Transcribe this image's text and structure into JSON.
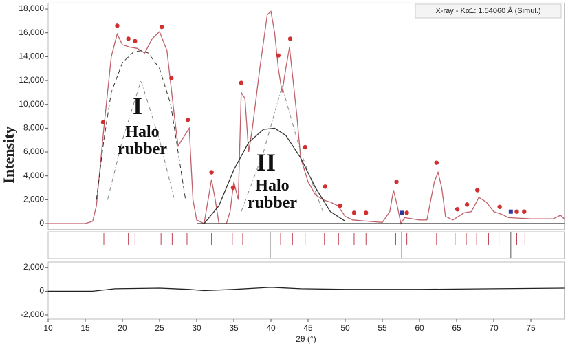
{
  "chart_data": [
    {
      "type": "line",
      "subtitle": "X-ray - Kα1: 1.54060 Å (Simul.)",
      "ylabel": "Intensity",
      "annotations": [
        "I",
        "Halo rubber",
        "II",
        "Halo rubber"
      ],
      "xlim": [
        10,
        79.5
      ],
      "ylim": [
        -500,
        18500
      ],
      "yticks": [
        0,
        {
          "value": 2000,
          "label": "2,000"
        },
        {
          "value": 4000,
          "label": "4,000"
        },
        {
          "value": 6000,
          "label": "6,000"
        },
        {
          "value": 8000,
          "label": "8,000"
        },
        {
          "value": 10000,
          "label": "10,000"
        },
        {
          "value": 12000,
          "label": "12,000"
        },
        {
          "value": 14000,
          "label": "14,000"
        },
        {
          "value": 16000,
          "label": "16,000"
        },
        {
          "value": 18000,
          "label": "18,000"
        }
      ],
      "series": [
        {
          "color": "#c0606a",
          "style": "solid",
          "x": [
            10,
            15,
            16,
            16.5,
            17.5,
            18.5,
            19.3,
            20,
            21,
            22,
            23,
            24,
            25,
            26,
            27,
            27.5,
            28.5,
            29,
            29.5,
            30,
            31,
            32,
            32.5,
            33,
            34,
            34.5,
            35,
            35.6,
            36,
            36.5,
            37,
            37.5,
            38.5,
            39.5,
            40,
            40.5,
            41,
            41.5,
            42,
            42.5,
            43.5,
            44,
            45,
            46,
            47,
            48,
            49,
            50,
            51,
            53,
            55,
            56,
            56.5,
            57,
            57.5,
            58,
            60,
            61,
            62,
            62.5,
            63,
            63.5,
            64.5,
            66,
            67,
            68,
            69,
            70,
            71,
            72,
            75,
            78,
            79,
            79.5
          ],
          "values": [
            0,
            0,
            200,
            1500,
            8000,
            14000,
            15900,
            15000,
            14800,
            14700,
            14300,
            15500,
            16100,
            14500,
            9000,
            6500,
            7500,
            8000,
            2000,
            300,
            0,
            3700,
            2000,
            0,
            0,
            1000,
            3500,
            2000,
            11000,
            10500,
            6000,
            8000,
            13000,
            17500,
            17800,
            16000,
            13000,
            11000,
            13000,
            14800,
            9000,
            5500,
            3500,
            2400,
            2000,
            1800,
            1500,
            600,
            300,
            200,
            100,
            1000,
            2800,
            1500,
            0,
            500,
            300,
            300,
            3500,
            4300,
            3000,
            600,
            300,
            900,
            1000,
            2200,
            1800,
            1000,
            800,
            500,
            400,
            400,
            700,
            400
          ]
        },
        {
          "color": "#333333",
          "style": "dashed",
          "x": [
            16.5,
            17.5,
            18.5,
            20,
            21.5,
            22.5,
            23.5,
            25,
            26.5,
            27.5,
            28.5
          ],
          "values": [
            2000,
            7000,
            11000,
            13500,
            14400,
            14500,
            14300,
            13000,
            10000,
            6000,
            2000
          ]
        },
        {
          "color": "#333333",
          "style": "solid",
          "x": [
            31,
            33,
            35,
            37,
            39,
            40.5,
            42,
            44,
            46,
            48,
            50
          ],
          "values": [
            0,
            1500,
            4500,
            6800,
            7900,
            8000,
            7400,
            5500,
            3000,
            1000,
            200
          ]
        },
        {
          "color": "#888888",
          "style": "dashdot",
          "x": [
            18,
            20,
            22.5,
            25,
            27
          ],
          "values": [
            2000,
            7000,
            12000,
            7000,
            2000
          ]
        },
        {
          "color": "#888888",
          "style": "dashdot",
          "x": [
            36,
            39,
            41.5,
            44,
            47
          ],
          "values": [
            1000,
            6000,
            11500,
            6000,
            1000
          ]
        },
        {
          "color": "#333333",
          "style": "solid",
          "x": [
            30,
            79.5
          ],
          "values": [
            0,
            0
          ]
        },
        {
          "color": "#d03030",
          "style": "markers",
          "marker": "circle",
          "x": [
            17.4,
            19.3,
            20.8,
            21.7,
            25.3,
            26.6,
            28.8,
            32,
            34.9,
            36,
            41,
            42.6,
            44.6,
            47.3,
            49.3,
            51.2,
            52.8,
            56.9,
            58.3,
            62.3,
            65.1,
            66.4,
            67.8,
            70.8,
            73.1,
            74.1
          ],
          "values": [
            8500,
            16600,
            15500,
            15300,
            16500,
            12200,
            8700,
            4300,
            3000,
            11800,
            14100,
            15500,
            6400,
            3100,
            1500,
            900,
            900,
            3500,
            900,
            5100,
            1200,
            1600,
            2800,
            1400,
            1000,
            1000
          ]
        },
        {
          "color": "#2a3a9a",
          "style": "markers",
          "marker": "square",
          "x": [
            57.6,
            72.3
          ],
          "values": [
            900,
            1000
          ]
        }
      ]
    },
    {
      "type": "ticks",
      "xlim": [
        10,
        79.5
      ],
      "series": [
        {
          "color": "#c04050",
          "length": "half",
          "x": [
            17.5,
            19.4,
            20.8,
            21.7,
            25.2,
            26.7,
            28.7,
            32,
            34.8,
            36.2,
            41.3,
            42.9,
            44.6,
            47.2,
            49.1,
            51.2,
            52.8,
            56.8,
            58.3,
            62.3,
            64.8,
            66.3,
            67.7,
            69.3,
            70.7,
            73.1,
            74.2
          ]
        },
        {
          "color": "#555555",
          "length": "full",
          "x": [
            39.9,
            57.6,
            72.3
          ]
        }
      ]
    },
    {
      "type": "line",
      "xlabel": "2θ (°)",
      "xlim": [
        10,
        79.5
      ],
      "ylim": [
        -2350,
        2450
      ],
      "yticks": [
        {
          "value": -2000,
          "label": "-2,000"
        },
        0,
        {
          "value": 2000,
          "label": "2,000"
        }
      ],
      "xticks": [
        10,
        15,
        20,
        25,
        30,
        35,
        40,
        45,
        50,
        55,
        60,
        65,
        70,
        75
      ],
      "series": [
        {
          "color": "#222222",
          "style": "solid",
          "x": [
            10,
            16,
            19,
            25,
            29,
            31,
            35,
            40,
            44,
            50,
            60,
            70,
            79.5
          ],
          "values": [
            0,
            0,
            200,
            250,
            150,
            50,
            150,
            320,
            200,
            150,
            150,
            200,
            250
          ]
        }
      ]
    }
  ]
}
